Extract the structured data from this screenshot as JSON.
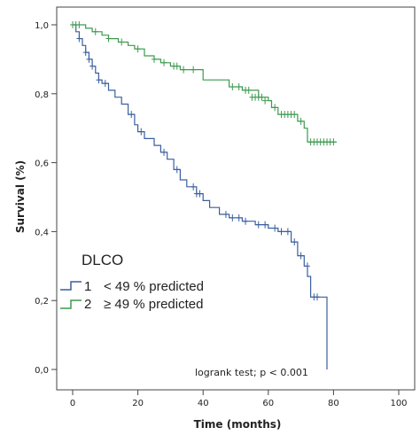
{
  "chart_data": {
    "type": "line",
    "subtype": "kaplan-meier",
    "title": "",
    "xlabel": "Time (months)",
    "ylabel": "Survival (%)",
    "xlim": [
      0,
      100
    ],
    "ylim": [
      0,
      1
    ],
    "x_ticks": [
      0,
      20,
      40,
      60,
      80,
      100
    ],
    "x_tick_labels": [
      "0",
      "20",
      "40",
      "60",
      "80",
      "100"
    ],
    "y_ticks": [
      0,
      0.2,
      0.4,
      0.6,
      0.8,
      1.0
    ],
    "y_tick_labels": [
      "0,0",
      "0,2",
      "0,4",
      "0,6",
      "0,8",
      "1,0"
    ],
    "grid": false,
    "legend": {
      "title": "DLCO",
      "placement": "bottom-left",
      "entries": [
        {
          "code": "1",
          "label": "< 49 % predicted",
          "color": "#3a5f9e"
        },
        {
          "code": "2",
          "label": "≥ 49 % predicted",
          "color": "#3c9a4e"
        }
      ]
    },
    "annotation": "logrank test; p < 0.001",
    "series": [
      {
        "code": "1",
        "color": "#3a5f9e",
        "steps": [
          [
            0,
            1.0
          ],
          [
            1,
            0.98
          ],
          [
            2,
            0.96
          ],
          [
            3,
            0.94
          ],
          [
            4,
            0.92
          ],
          [
            5,
            0.9
          ],
          [
            6,
            0.88
          ],
          [
            7,
            0.86
          ],
          [
            8,
            0.84
          ],
          [
            9,
            0.83
          ],
          [
            11,
            0.81
          ],
          [
            13,
            0.79
          ],
          [
            15,
            0.77
          ],
          [
            17,
            0.74
          ],
          [
            19,
            0.71
          ],
          [
            20,
            0.69
          ],
          [
            22,
            0.67
          ],
          [
            25,
            0.65
          ],
          [
            27,
            0.63
          ],
          [
            29,
            0.61
          ],
          [
            31,
            0.58
          ],
          [
            33,
            0.55
          ],
          [
            35,
            0.53
          ],
          [
            38,
            0.51
          ],
          [
            40,
            0.49
          ],
          [
            42,
            0.47
          ],
          [
            45,
            0.45
          ],
          [
            48,
            0.44
          ],
          [
            52,
            0.43
          ],
          [
            56,
            0.42
          ],
          [
            60,
            0.41
          ],
          [
            63,
            0.4
          ],
          [
            67,
            0.37
          ],
          [
            69,
            0.33
          ],
          [
            71,
            0.3
          ],
          [
            72,
            0.27
          ],
          [
            73,
            0.21
          ],
          [
            78,
            0.0
          ]
        ],
        "censored": [
          [
            2,
            0.96
          ],
          [
            4,
            0.92
          ],
          [
            5,
            0.9
          ],
          [
            6,
            0.88
          ],
          [
            8,
            0.84
          ],
          [
            10,
            0.83
          ],
          [
            18,
            0.74
          ],
          [
            21,
            0.69
          ],
          [
            28,
            0.63
          ],
          [
            32,
            0.58
          ],
          [
            37,
            0.53
          ],
          [
            38,
            0.51
          ],
          [
            39,
            0.51
          ],
          [
            47,
            0.45
          ],
          [
            49,
            0.44
          ],
          [
            51,
            0.44
          ],
          [
            53,
            0.43
          ],
          [
            57,
            0.42
          ],
          [
            59,
            0.42
          ],
          [
            62,
            0.41
          ],
          [
            64,
            0.4
          ],
          [
            66,
            0.4
          ],
          [
            68,
            0.37
          ],
          [
            70,
            0.33
          ],
          [
            72,
            0.3
          ],
          [
            74,
            0.21
          ],
          [
            75,
            0.21
          ]
        ]
      },
      {
        "code": "2",
        "color": "#3c9a4e",
        "steps": [
          [
            0,
            1.0
          ],
          [
            4,
            0.99
          ],
          [
            6,
            0.98
          ],
          [
            9,
            0.97
          ],
          [
            11,
            0.96
          ],
          [
            14,
            0.95
          ],
          [
            17,
            0.94
          ],
          [
            19,
            0.93
          ],
          [
            22,
            0.91
          ],
          [
            25,
            0.9
          ],
          [
            27,
            0.89
          ],
          [
            30,
            0.88
          ],
          [
            33,
            0.87
          ],
          [
            40,
            0.84
          ],
          [
            48,
            0.82
          ],
          [
            52,
            0.81
          ],
          [
            57,
            0.79
          ],
          [
            60,
            0.78
          ],
          [
            61,
            0.76
          ],
          [
            63,
            0.74
          ],
          [
            69,
            0.72
          ],
          [
            71,
            0.7
          ],
          [
            72,
            0.66
          ],
          [
            81,
            0.66
          ]
        ],
        "censored": [
          [
            0,
            1.0
          ],
          [
            1,
            1.0
          ],
          [
            2,
            1.0
          ],
          [
            7,
            0.98
          ],
          [
            11,
            0.96
          ],
          [
            15,
            0.95
          ],
          [
            20,
            0.93
          ],
          [
            25,
            0.9
          ],
          [
            28,
            0.89
          ],
          [
            31,
            0.88
          ],
          [
            32,
            0.88
          ],
          [
            34,
            0.87
          ],
          [
            37,
            0.87
          ],
          [
            49,
            0.82
          ],
          [
            51,
            0.82
          ],
          [
            53,
            0.81
          ],
          [
            54,
            0.81
          ],
          [
            55,
            0.79
          ],
          [
            56,
            0.79
          ],
          [
            57,
            0.79
          ],
          [
            58,
            0.79
          ],
          [
            59,
            0.78
          ],
          [
            62,
            0.76
          ],
          [
            64,
            0.74
          ],
          [
            65,
            0.74
          ],
          [
            66,
            0.74
          ],
          [
            67,
            0.74
          ],
          [
            68,
            0.74
          ],
          [
            70,
            0.72
          ],
          [
            73,
            0.66
          ],
          [
            74,
            0.66
          ],
          [
            75,
            0.66
          ],
          [
            76,
            0.66
          ],
          [
            77,
            0.66
          ],
          [
            78,
            0.66
          ],
          [
            79,
            0.66
          ],
          [
            80,
            0.66
          ]
        ]
      }
    ]
  }
}
